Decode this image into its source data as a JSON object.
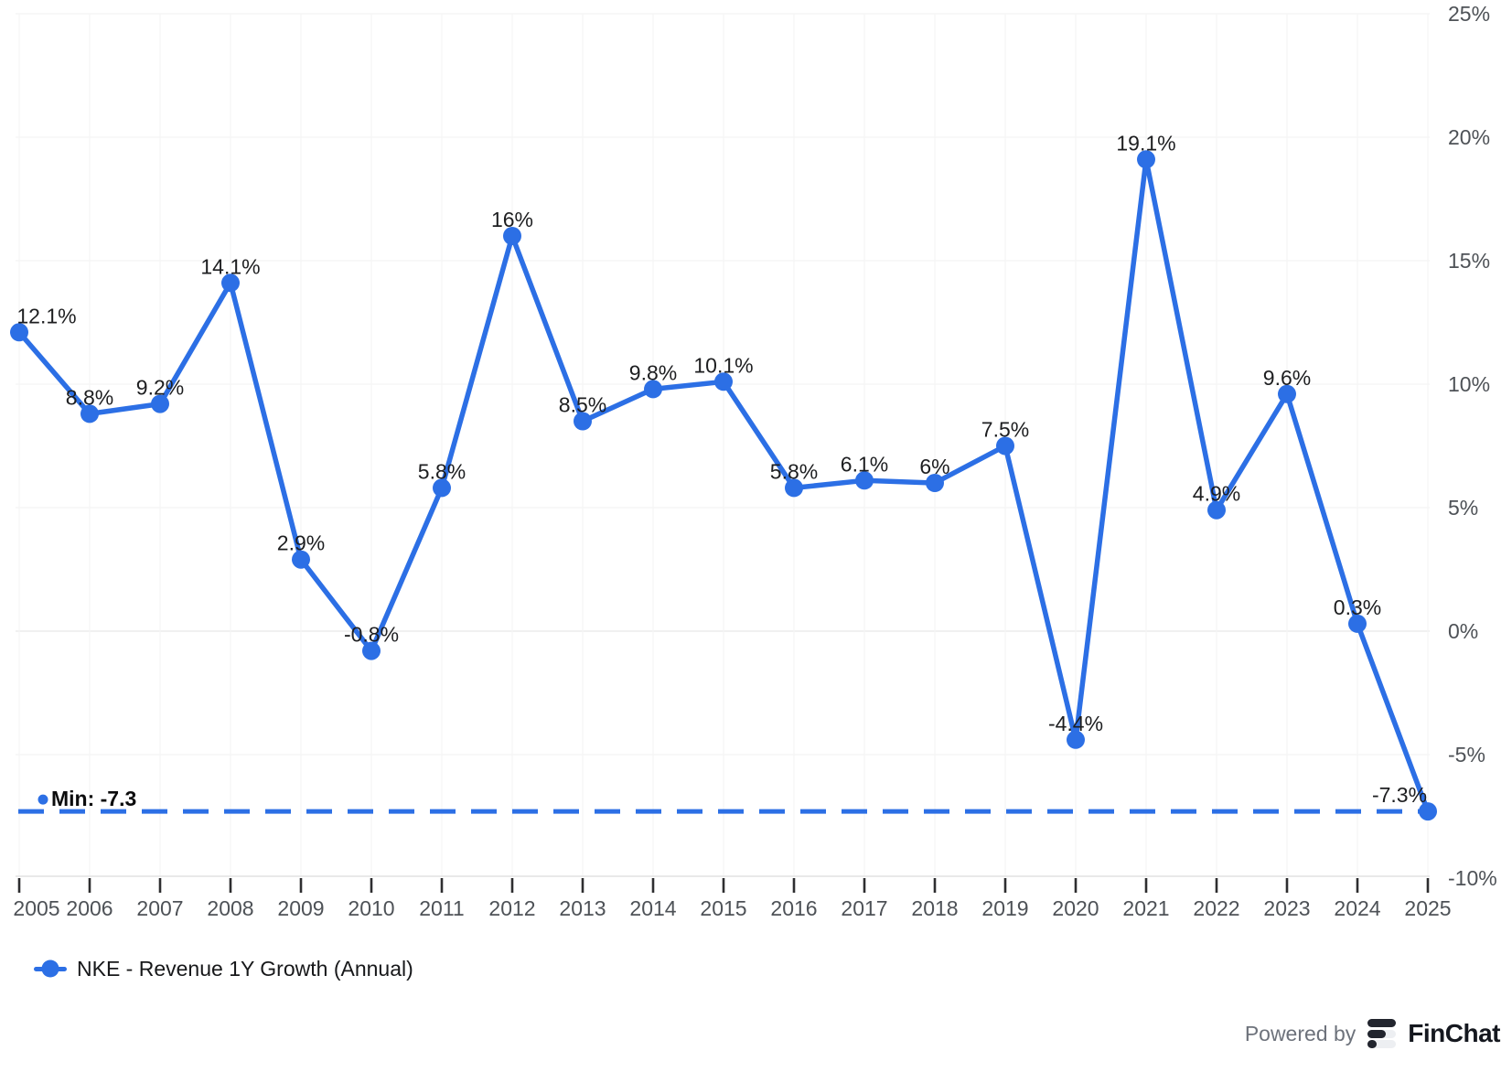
{
  "chart_data": {
    "type": "line",
    "series_name": "NKE - Revenue 1Y Growth (Annual)",
    "x": [
      2005,
      2006,
      2007,
      2008,
      2009,
      2010,
      2011,
      2012,
      2013,
      2014,
      2015,
      2016,
      2017,
      2018,
      2019,
      2020,
      2021,
      2022,
      2023,
      2024,
      2025
    ],
    "values": [
      12.1,
      8.8,
      9.2,
      14.1,
      2.9,
      -0.8,
      5.8,
      16,
      8.5,
      9.8,
      10.1,
      5.8,
      6.1,
      6,
      7.5,
      -4.4,
      19.1,
      4.9,
      9.6,
      0.3,
      -7.3
    ],
    "point_labels": [
      "12.1%",
      "8.8%",
      "9.2%",
      "14.1%",
      "2.9%",
      "-0.8%",
      "5.8%",
      "16%",
      "8.5%",
      "9.8%",
      "10.1%",
      "5.8%",
      "6.1%",
      "6%",
      "7.5%",
      "-4.4%",
      "19.1%",
      "4.9%",
      "9.6%",
      "0.3%",
      "-7.3%"
    ],
    "y_ticks": [
      "25%",
      "20%",
      "15%",
      "10%",
      "5%",
      "0%",
      "-5%",
      "-10%"
    ],
    "y_tick_values": [
      25,
      20,
      15,
      10,
      5,
      0,
      -5,
      -10
    ],
    "ylim": [
      -10,
      25
    ],
    "grid": true,
    "legend_position": "bottom-left",
    "line_color": "#2c6fe5",
    "min_annotation": {
      "label": "Min: -7.3",
      "value": -7.3
    }
  },
  "footer": {
    "powered_by": "Powered by",
    "brand": "FinChat"
  }
}
